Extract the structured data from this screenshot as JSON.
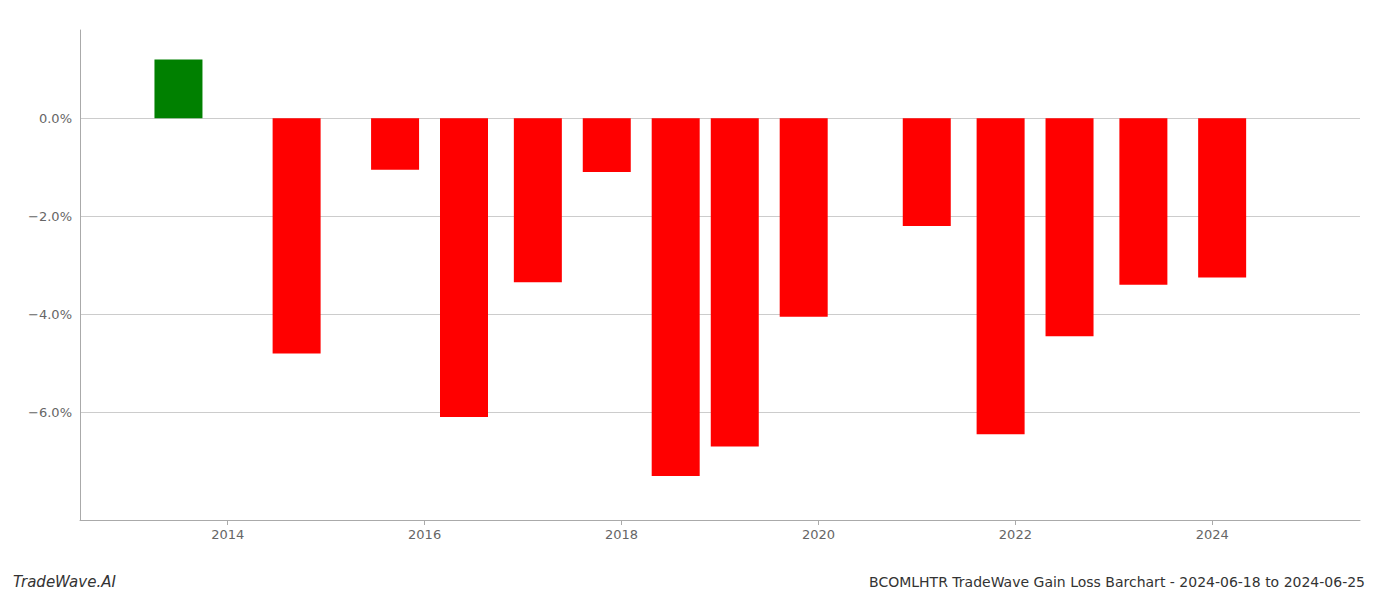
{
  "chart_data": {
    "type": "bar",
    "title": "BCOMLHTR TradeWave Gain Loss Barchart - 2024-06-18 to 2024-06-25",
    "annotations": [
      "TradeWave.AI"
    ],
    "x": [
      2013.5,
      2014.7,
      2015.7,
      2016.4,
      2017.15,
      2017.85,
      2018.55,
      2019.15,
      2019.85,
      2021.1,
      2021.85,
      2022.55,
      2023.3,
      2024.1
    ],
    "values": [
      1.2,
      -4.8,
      -1.05,
      -6.1,
      -3.35,
      -1.1,
      -7.3,
      -6.7,
      -4.05,
      -2.2,
      -6.45,
      -4.45,
      -3.4,
      -3.25
    ],
    "colors": [
      "#008000",
      "#ff0000",
      "#ff0000",
      "#ff0000",
      "#ff0000",
      "#ff0000",
      "#ff0000",
      "#ff0000",
      "#ff0000",
      "#ff0000",
      "#ff0000",
      "#ff0000",
      "#ff0000",
      "#ff0000"
    ],
    "xlim": [
      2012.5,
      2025.5
    ],
    "xticks": [
      2014,
      2016,
      2018,
      2020,
      2022,
      2024
    ],
    "ylim": [
      -8.2,
      1.8
    ],
    "yticks": [
      {
        "value": 0.0,
        "label": "0.0%"
      },
      {
        "value": -2.0,
        "label": "−2.0%"
      },
      {
        "value": -4.0,
        "label": "−4.0%"
      },
      {
        "value": -6.0,
        "label": "−6.0%"
      }
    ],
    "grid": true
  }
}
